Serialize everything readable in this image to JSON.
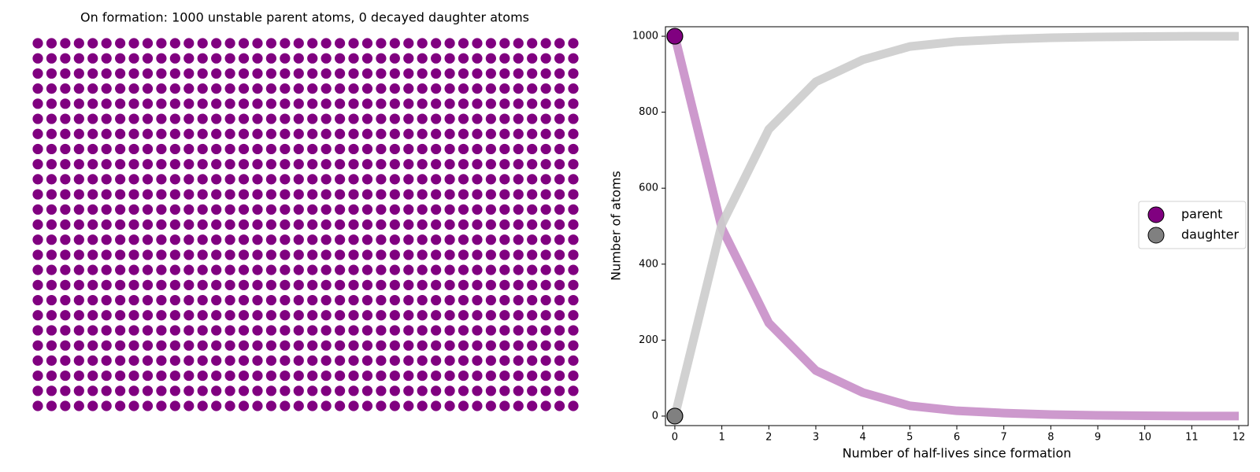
{
  "chart_data": [
    {
      "type": "scatter",
      "title": "On formation: 1000 unstable parent atoms, 0 decayed daughter atoms",
      "grid": {
        "columns": 40,
        "rows": 25
      },
      "counts": {
        "parent": 1000,
        "daughter": 0
      },
      "colors": {
        "parent": "#800080",
        "daughter": "#808080"
      }
    },
    {
      "type": "line",
      "xlabel": "Number of half-lives since formation",
      "ylabel": "Number of atoms",
      "xlim": [
        -0.2,
        12.2
      ],
      "ylim": [
        -25,
        1025
      ],
      "xticks": [
        0,
        1,
        2,
        3,
        4,
        5,
        6,
        7,
        8,
        9,
        10,
        11,
        12
      ],
      "yticks": [
        0,
        200,
        400,
        600,
        800,
        1000
      ],
      "legend": {
        "position": "right"
      },
      "series": [
        {
          "name": "parent",
          "color": "#800080",
          "line_color": "#c88ec8",
          "x": [
            0,
            1,
            2,
            3,
            4,
            5,
            6,
            7,
            8,
            9,
            10,
            11,
            12
          ],
          "values": [
            1000,
            495,
            245,
            120,
            62,
            27,
            14,
            8,
            4,
            2,
            1,
            0,
            0
          ]
        },
        {
          "name": "daughter",
          "color": "#808080",
          "line_color": "#cccccc",
          "x": [
            0,
            1,
            2,
            3,
            4,
            5,
            6,
            7,
            8,
            9,
            10,
            11,
            12
          ],
          "values": [
            0,
            505,
            755,
            880,
            938,
            973,
            986,
            992,
            996,
            998,
            999,
            1000,
            1000
          ]
        }
      ],
      "markers": [
        {
          "series": "parent",
          "x": 0,
          "y": 1000
        },
        {
          "series": "daughter",
          "x": 0,
          "y": 0
        }
      ]
    }
  ]
}
